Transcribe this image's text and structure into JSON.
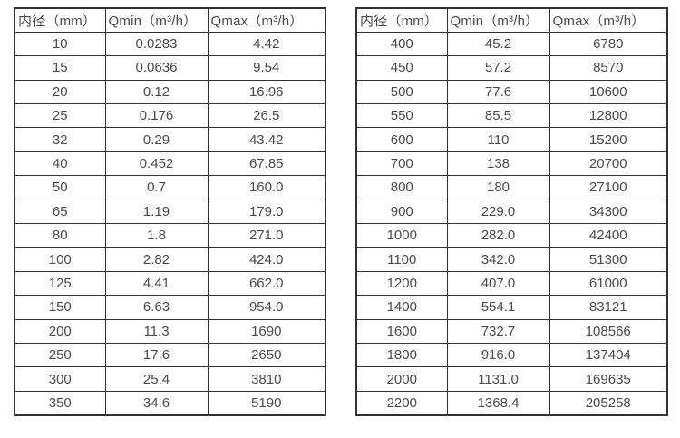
{
  "colors": {
    "background": "#ffffff",
    "border": "#323232",
    "text": "#4a4a4a"
  },
  "tables": [
    {
      "id": "diameter-flow-table-left",
      "headers": [
        "内径（mm）",
        "Qmin（m³/h）",
        "Qmax（m³/h）"
      ],
      "rows": [
        [
          "10",
          "0.0283",
          "4.42"
        ],
        [
          "15",
          "0.0636",
          "9.54"
        ],
        [
          "20",
          "0.12",
          "16.96"
        ],
        [
          "25",
          "0.176",
          "26.5"
        ],
        [
          "32",
          "0.29",
          "43.42"
        ],
        [
          "40",
          "0.452",
          "67.85"
        ],
        [
          "50",
          "0.7",
          "160.0"
        ],
        [
          "65",
          "1.19",
          "179.0"
        ],
        [
          "80",
          "1.8",
          "271.0"
        ],
        [
          "100",
          "2.82",
          "424.0"
        ],
        [
          "125",
          "4.41",
          "662.0"
        ],
        [
          "150",
          "6.63",
          "954.0"
        ],
        [
          "200",
          "11.3",
          "1690"
        ],
        [
          "250",
          "17.6",
          "2650"
        ],
        [
          "300",
          "25.4",
          "3810"
        ],
        [
          "350",
          "34.6",
          "5190"
        ]
      ]
    },
    {
      "id": "diameter-flow-table-right",
      "headers": [
        "内径（mm）",
        "Qmin（m³/h）",
        "Qmax（m³/h）"
      ],
      "rows": [
        [
          "400",
          "45.2",
          "6780"
        ],
        [
          "450",
          "57.2",
          "8570"
        ],
        [
          "500",
          "77.6",
          "10600"
        ],
        [
          "550",
          "85.5",
          "12800"
        ],
        [
          "600",
          "110",
          "15200"
        ],
        [
          "700",
          "138",
          "20700"
        ],
        [
          "800",
          "180",
          "27100"
        ],
        [
          "900",
          "229.0",
          "34300"
        ],
        [
          "1000",
          "282.0",
          "42400"
        ],
        [
          "1100",
          "342.0",
          "51300"
        ],
        [
          "1200",
          "407.0",
          "61000"
        ],
        [
          "1400",
          "554.1",
          "83121"
        ],
        [
          "1600",
          "732.7",
          "108566"
        ],
        [
          "1800",
          "916.0",
          "137404"
        ],
        [
          "2000",
          "1131.0",
          "169635"
        ],
        [
          "2200",
          "1368.4",
          "205258"
        ]
      ]
    }
  ]
}
